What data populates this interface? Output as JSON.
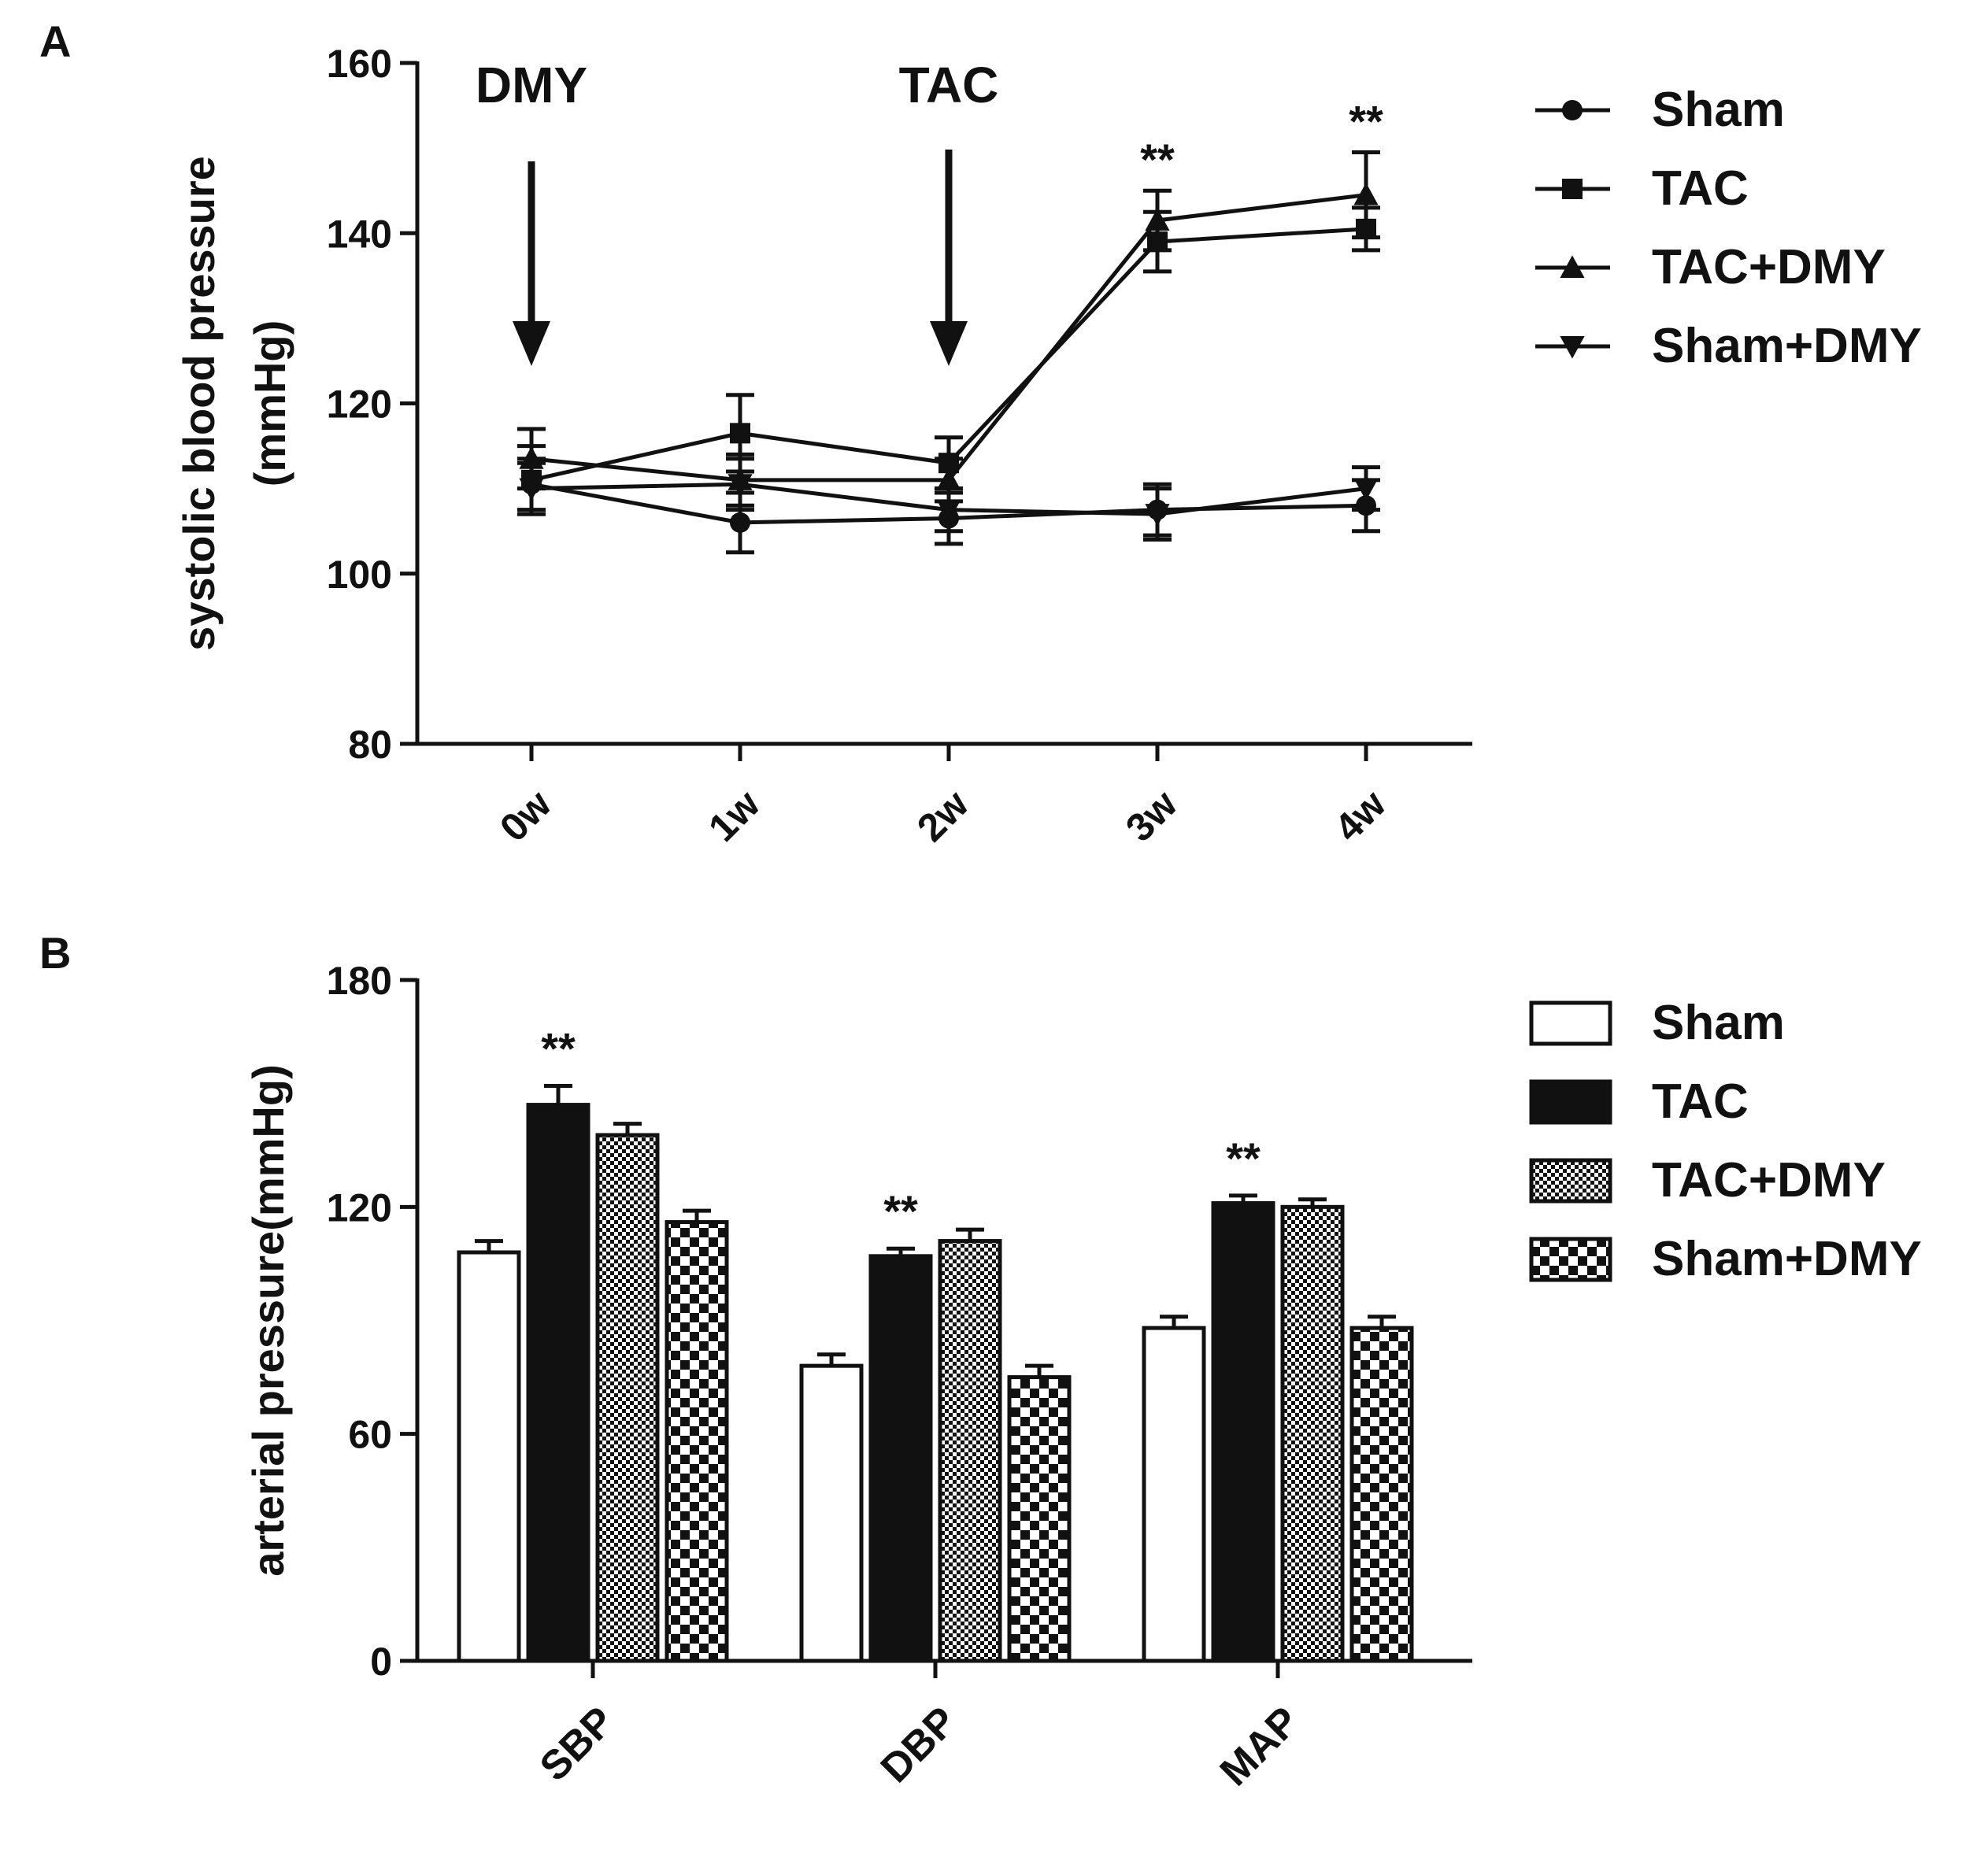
{
  "chart_data": [
    {
      "panel_label": "A",
      "type": "line",
      "title": "",
      "xlabel": "",
      "ylabel": [
        "systolic blood pressure",
        "(mmHg)"
      ],
      "categories": [
        "0w",
        "1w",
        "2w",
        "3w",
        "4w"
      ],
      "ylim": [
        80,
        160
      ],
      "yticks": [
        80,
        100,
        120,
        140,
        160
      ],
      "annotations": [
        {
          "text": "DMY",
          "category": "0w",
          "arrow": true
        },
        {
          "text": "TAC",
          "category": "2w",
          "arrow": true
        },
        {
          "text": "**",
          "category": "3w"
        },
        {
          "text": "**",
          "category": "4w"
        }
      ],
      "legend_position": "right",
      "series": [
        {
          "name": "Sham",
          "marker": "circle",
          "values": [
            110.5,
            106,
            106.5,
            107.5,
            108
          ],
          "errors": [
            3,
            3.5,
            3,
            3,
            3
          ]
        },
        {
          "name": "TAC",
          "marker": "square",
          "values": [
            111,
            116.5,
            113,
            139,
            140.5
          ],
          "errors": [
            4,
            4.5,
            3,
            3.5,
            2.5
          ]
        },
        {
          "name": "TAC+DMY",
          "marker": "triangle-up",
          "values": [
            113.5,
            111,
            111,
            141.5,
            144.5
          ],
          "errors": [
            3.5,
            3,
            2.5,
            3.5,
            5
          ]
        },
        {
          "name": "Sham+DMY",
          "marker": "triangle-down",
          "values": [
            110,
            110.5,
            107.5,
            107,
            110
          ],
          "errors": [
            3,
            3,
            2.5,
            3,
            2.5
          ]
        }
      ]
    },
    {
      "panel_label": "B",
      "type": "bar",
      "title": "",
      "xlabel": "",
      "ylabel": "arterial pressure(mmHg)",
      "categories": [
        "SBP",
        "DBP",
        "MAP"
      ],
      "ylim": [
        0,
        180
      ],
      "yticks": [
        0,
        60,
        120,
        180
      ],
      "annotations": [
        {
          "text": "**",
          "category": "SBP",
          "series": "TAC"
        },
        {
          "text": "**",
          "category": "DBP",
          "series": "TAC"
        },
        {
          "text": "**",
          "category": "MAP",
          "series": "TAC"
        }
      ],
      "legend_position": "right",
      "series": [
        {
          "name": "Sham",
          "fill": "white",
          "values": [
            108,
            78,
            88
          ],
          "errors": [
            3,
            3,
            3
          ]
        },
        {
          "name": "TAC",
          "fill": "black",
          "values": [
            147,
            107,
            121
          ],
          "errors": [
            5,
            2,
            2
          ]
        },
        {
          "name": "TAC+DMY",
          "fill": "fine-check",
          "values": [
            139,
            111,
            120
          ],
          "errors": [
            3,
            3,
            2
          ]
        },
        {
          "name": "Sham+DMY",
          "fill": "coarse-check",
          "values": [
            116,
            75,
            88
          ],
          "errors": [
            3,
            3,
            3
          ]
        }
      ]
    }
  ]
}
